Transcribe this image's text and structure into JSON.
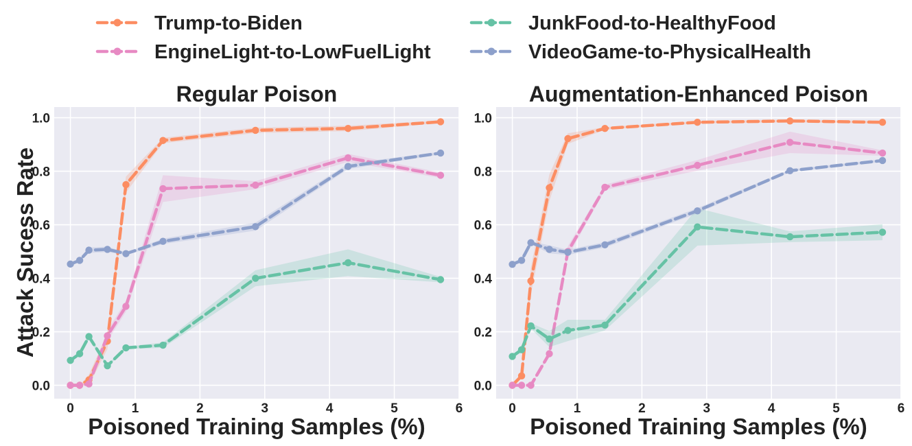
{
  "figure": {
    "ylabel": "Attack Sucess Rate"
  },
  "legend": {
    "placement": "top",
    "entries": [
      {
        "name": "Trump-to-Biden",
        "color": "#fc8d62"
      },
      {
        "name": "EngineLight-to-LowFuelLight",
        "color": "#e78ac3"
      },
      {
        "name": "JunkFood-to-HealthyFood",
        "color": "#66c2a5"
      },
      {
        "name": "VideoGame-to-PhysicalHealth",
        "color": "#8da0cb"
      }
    ]
  },
  "chart_data": [
    {
      "type": "line",
      "title": "Regular Poison",
      "xlabel": "Poisoned Training Samples (%)",
      "ylabel": "Attack Sucess Rate",
      "xlim": [
        -0.25,
        6
      ],
      "ylim": [
        -0.05,
        1.04
      ],
      "xticks": [
        "0",
        "1",
        "2",
        "3",
        "4",
        "5",
        "6"
      ],
      "yticks": [
        "0.0",
        "0.2",
        "0.4",
        "0.6",
        "0.8",
        "1.0"
      ],
      "grid": true,
      "series": [
        {
          "name": "Trump-to-Biden",
          "color": "#fc8d62",
          "x": [
            0,
            0.143,
            0.286,
            0.571,
            0.857,
            1.429,
            2.857,
            4.286,
            5.714
          ],
          "values": [
            0.0,
            0.0,
            0.02,
            0.165,
            0.75,
            0.915,
            0.953,
            0.96,
            0.985
          ],
          "band": [
            0.0,
            0.0,
            0.02,
            0.03,
            0.03,
            0.01,
            0.01,
            0.01,
            0.005
          ]
        },
        {
          "name": "EngineLight-to-LowFuelLight",
          "color": "#e78ac3",
          "x": [
            0,
            0.143,
            0.286,
            0.571,
            0.857,
            1.429,
            2.857,
            4.286,
            5.714
          ],
          "values": [
            0.0,
            0.0,
            0.005,
            0.185,
            0.295,
            0.735,
            0.748,
            0.85,
            0.785
          ],
          "band": [
            0.0,
            0.0,
            0.005,
            0.02,
            0.02,
            0.05,
            0.015,
            0.015,
            0.01
          ]
        },
        {
          "name": "JunkFood-to-HealthyFood",
          "color": "#66c2a5",
          "x": [
            0,
            0.143,
            0.286,
            0.571,
            0.857,
            1.429,
            2.857,
            4.286,
            5.714
          ],
          "values": [
            0.093,
            0.118,
            0.182,
            0.073,
            0.14,
            0.15,
            0.4,
            0.458,
            0.395
          ],
          "band": [
            0.005,
            0.005,
            0.01,
            0.005,
            0.005,
            0.01,
            0.03,
            0.05,
            0.01
          ]
        },
        {
          "name": "VideoGame-to-PhysicalHealth",
          "color": "#8da0cb",
          "x": [
            0,
            0.143,
            0.286,
            0.571,
            0.857,
            1.429,
            2.857,
            4.286,
            5.714
          ],
          "values": [
            0.453,
            0.467,
            0.505,
            0.508,
            0.492,
            0.538,
            0.593,
            0.818,
            0.868
          ],
          "band": [
            0.005,
            0.005,
            0.01,
            0.01,
            0.005,
            0.01,
            0.015,
            0.01,
            0.005
          ]
        }
      ]
    },
    {
      "type": "line",
      "title": "Augmentation-Enhanced Poison",
      "xlabel": "Poisoned Training Samples (%)",
      "ylabel": "",
      "xlim": [
        -0.25,
        6
      ],
      "ylim": [
        -0.05,
        1.04
      ],
      "xticks": [
        "0",
        "1",
        "2",
        "3",
        "4",
        "5",
        "6"
      ],
      "yticks": [
        "0.0",
        "0.2",
        "0.4",
        "0.6",
        "0.8",
        "1.0"
      ],
      "grid": true,
      "series": [
        {
          "name": "Trump-to-Biden",
          "color": "#fc8d62",
          "x": [
            0,
            0.143,
            0.286,
            0.571,
            0.857,
            1.429,
            2.857,
            4.286,
            5.714
          ],
          "values": [
            0.0,
            0.035,
            0.39,
            0.738,
            0.922,
            0.96,
            0.983,
            0.988,
            0.983
          ],
          "band": [
            0.0,
            0.01,
            0.05,
            0.05,
            0.02,
            0.005,
            0.005,
            0.005,
            0.005
          ]
        },
        {
          "name": "EngineLight-to-LowFuelLight",
          "color": "#e78ac3",
          "x": [
            0,
            0.143,
            0.286,
            0.571,
            0.857,
            1.429,
            2.857,
            4.286,
            5.714
          ],
          "values": [
            0.0,
            0.0,
            0.0,
            0.118,
            0.5,
            0.74,
            0.822,
            0.908,
            0.868
          ],
          "band": [
            0.0,
            0.0,
            0.0,
            0.01,
            0.02,
            0.01,
            0.02,
            0.04,
            0.01
          ]
        },
        {
          "name": "JunkFood-to-HealthyFood",
          "color": "#66c2a5",
          "x": [
            0,
            0.143,
            0.286,
            0.571,
            0.857,
            1.429,
            2.857,
            4.286,
            5.714
          ],
          "values": [
            0.108,
            0.133,
            0.222,
            0.173,
            0.205,
            0.225,
            0.592,
            0.555,
            0.572
          ],
          "band": [
            0.005,
            0.01,
            0.01,
            0.03,
            0.04,
            0.02,
            0.07,
            0.02,
            0.03
          ]
        },
        {
          "name": "VideoGame-to-PhysicalHealth",
          "color": "#8da0cb",
          "x": [
            0,
            0.143,
            0.286,
            0.571,
            0.857,
            1.429,
            2.857,
            4.286,
            5.714
          ],
          "values": [
            0.452,
            0.467,
            0.533,
            0.508,
            0.497,
            0.525,
            0.652,
            0.802,
            0.84
          ],
          "band": [
            0.005,
            0.005,
            0.005,
            0.015,
            0.01,
            0.01,
            0.01,
            0.005,
            0.005
          ]
        }
      ]
    }
  ]
}
